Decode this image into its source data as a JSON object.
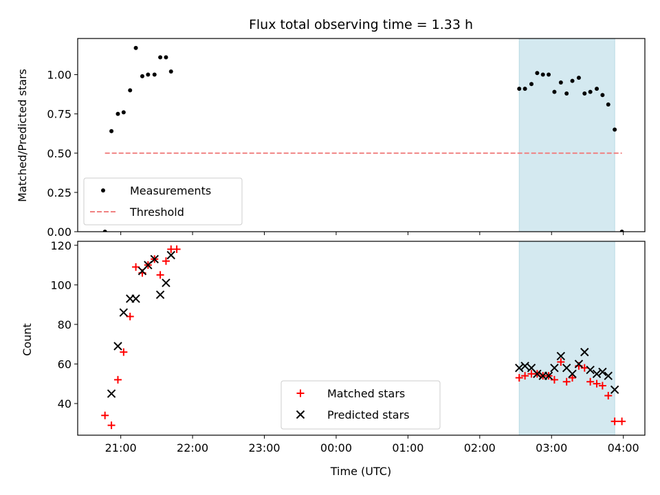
{
  "chart_data": {
    "type": "scatter",
    "title": "Flux total observing time = 1.33 h",
    "xlabel": "Time (UTC)",
    "x_unit": "hours since 00:00 UTC (negative = previous day)",
    "xlim": [
      -3.6,
      4.3
    ],
    "x_ticks": [
      {
        "value": -3,
        "label": "21:00"
      },
      {
        "value": -2,
        "label": "22:00"
      },
      {
        "value": -1,
        "label": "23:00"
      },
      {
        "value": 0,
        "label": "00:00"
      },
      {
        "value": 1,
        "label": "01:00"
      },
      {
        "value": 2,
        "label": "02:00"
      },
      {
        "value": 3,
        "label": "03:00"
      },
      {
        "value": 4,
        "label": "04:00"
      }
    ],
    "shaded_interval": [
      2.55,
      3.88
    ],
    "shade_color": "#d4e9f0",
    "panels": [
      {
        "name": "top",
        "ylabel": "Matched/Predicted stars",
        "ylim": [
          0,
          1.23
        ],
        "y_ticks": [
          {
            "value": 0,
            "label": "0.00"
          },
          {
            "value": 0.25,
            "label": "0.25"
          },
          {
            "value": 0.5,
            "label": "0.50"
          },
          {
            "value": 0.75,
            "label": "0.75"
          },
          {
            "value": 1.0,
            "label": "1.00"
          }
        ],
        "legend_position": "lower-left",
        "series": [
          {
            "name": "Measurements",
            "marker": "dot",
            "color": "#000000",
            "x": [
              -3.22,
              -3.13,
              -3.04,
              -2.96,
              -2.87,
              -2.79,
              -2.7,
              -2.62,
              -2.53,
              -2.45,
              -2.37,
              -2.3,
              -2.22,
              -0.05,
              2.55,
              2.63,
              2.72,
              2.8,
              2.88,
              2.96,
              3.04,
              3.13,
              3.21,
              3.29,
              3.38,
              3.46,
              3.54,
              3.63,
              3.71,
              3.79,
              3.88,
              3.98
            ],
            "y": [
              0.0,
              0.64,
              0.75,
              0.76,
              0.9,
              1.17,
              0.99,
              1.0,
              1.0,
              1.11,
              1.11,
              1.02,
              null,
              null,
              0.91,
              0.91,
              0.94,
              1.01,
              1.0,
              1.0,
              0.89,
              0.95,
              0.88,
              0.96,
              0.98,
              0.88,
              0.89,
              0.91,
              0.87,
              0.81,
              0.65,
              0.0
            ]
          },
          {
            "name": "Threshold",
            "marker": "dashed-line",
            "color": "#f08080",
            "x": [
              -3.22,
              3.98
            ],
            "y": [
              0.5,
              0.5
            ]
          }
        ]
      },
      {
        "name": "bottom",
        "ylabel": "Count",
        "ylim": [
          24,
          122
        ],
        "y_ticks": [
          {
            "value": 40,
            "label": "40"
          },
          {
            "value": 60,
            "label": "60"
          },
          {
            "value": 80,
            "label": "80"
          },
          {
            "value": 100,
            "label": "100"
          },
          {
            "value": 120,
            "label": "120"
          }
        ],
        "legend_position": "lower-center",
        "series": [
          {
            "name": "Matched stars",
            "marker": "plus",
            "color": "#ff0000",
            "x": [
              -3.22,
              -3.13,
              -3.04,
              -2.96,
              -2.87,
              -2.79,
              -2.7,
              -2.62,
              -2.53,
              -2.45,
              -2.37,
              -2.3,
              -2.22,
              2.55,
              2.63,
              2.72,
              2.8,
              2.88,
              2.96,
              3.04,
              3.13,
              3.21,
              3.29,
              3.38,
              3.46,
              3.54,
              3.63,
              3.71,
              3.79,
              3.88,
              3.98
            ],
            "y": [
              34,
              29,
              52,
              66,
              84,
              109,
              106,
              110,
              113,
              105,
              112,
              118,
              118,
              53,
              54,
              55,
              55,
              54,
              54,
              52,
              61,
              51,
              53,
              59,
              58,
              51,
              50,
              49,
              44,
              31,
              31
            ]
          },
          {
            "name": "Predicted stars",
            "marker": "x",
            "color": "#000000",
            "x": [
              -3.13,
              -3.04,
              -2.96,
              -2.87,
              -2.79,
              -2.7,
              -2.62,
              -2.53,
              -2.45,
              -2.37,
              -2.3,
              2.55,
              2.63,
              2.72,
              2.8,
              2.88,
              2.96,
              3.04,
              3.13,
              3.21,
              3.29,
              3.38,
              3.46,
              3.54,
              3.63,
              3.71,
              3.79,
              3.88
            ],
            "y": [
              45,
              69,
              86,
              93,
              93,
              107,
              110,
              113,
              95,
              101,
              115,
              58,
              59,
              58,
              55,
              54,
              54,
              58,
              64,
              58,
              55,
              60,
              66,
              57,
              55,
              56,
              54,
              47
            ]
          }
        ]
      }
    ]
  }
}
